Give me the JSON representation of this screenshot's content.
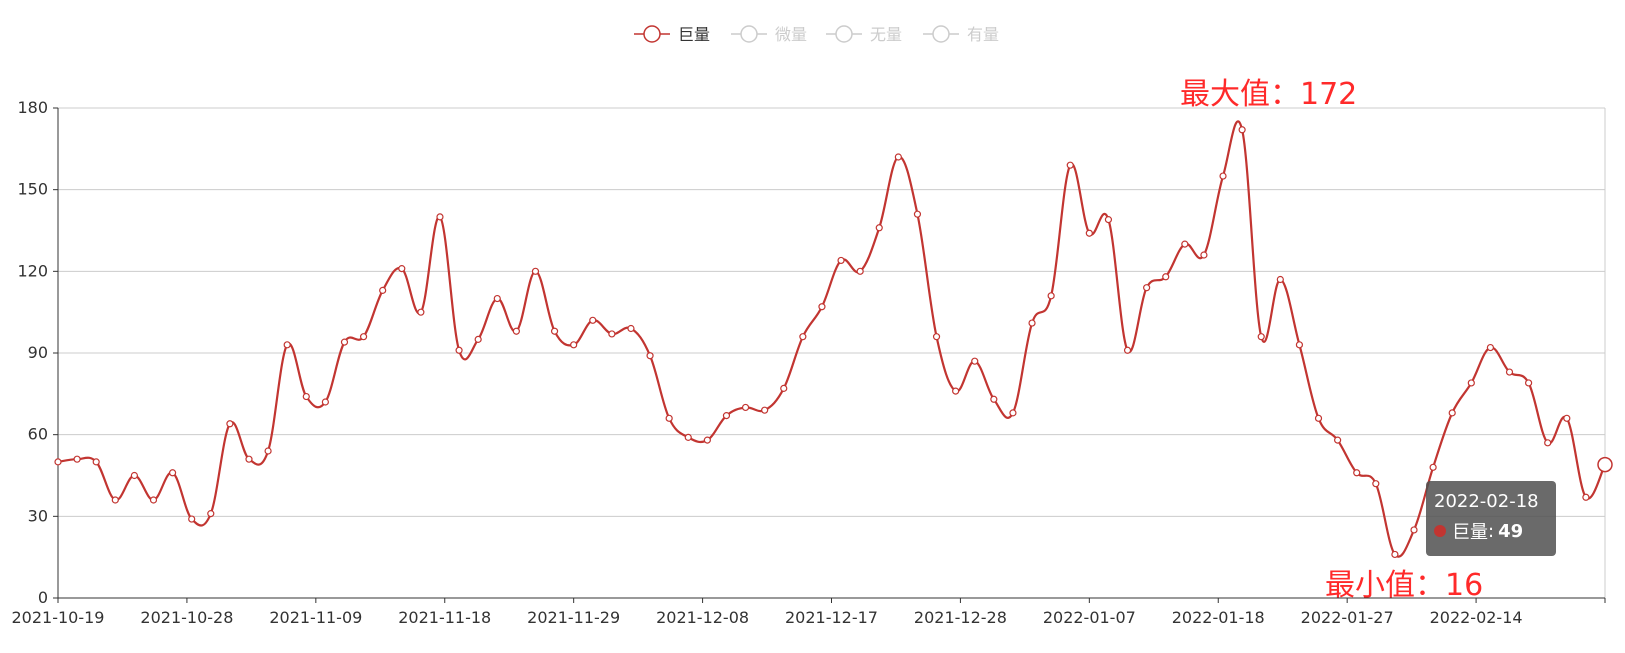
{
  "chart_data": {
    "type": "line",
    "smooth": true,
    "legend": {
      "placement": "top-center",
      "items": [
        {
          "label": "巨量",
          "active": true
        },
        {
          "label": "微量",
          "active": false
        },
        {
          "label": "无量",
          "active": false
        },
        {
          "label": "有量",
          "active": false
        }
      ]
    },
    "ylim": [
      0,
      180
    ],
    "yticks": [
      0,
      30,
      60,
      90,
      120,
      150,
      180
    ],
    "grid": true,
    "xtick_labels": [
      "2021-10-19",
      "2021-10-28",
      "2021-11-09",
      "2021-11-18",
      "2021-11-29",
      "2021-12-08",
      "2021-12-17",
      "2021-12-28",
      "2022-01-07",
      "2022-01-18",
      "2022-01-27",
      "2022-02-14"
    ],
    "series": [
      {
        "name": "巨量",
        "color": "#c23531",
        "values": [
          50,
          51,
          50,
          36,
          45,
          36,
          46,
          29,
          31,
          64,
          51,
          54,
          93,
          74,
          72,
          94,
          96,
          113,
          121,
          105,
          140,
          91,
          95,
          110,
          98,
          120,
          98,
          93,
          102,
          97,
          99,
          89,
          66,
          59,
          58,
          67,
          70,
          69,
          77,
          96,
          107,
          124,
          120,
          136,
          162,
          141,
          96,
          76,
          87,
          73,
          68,
          101,
          111,
          159,
          134,
          139,
          91,
          114,
          118,
          130,
          126,
          155,
          172,
          96,
          117,
          93,
          66,
          58,
          46,
          42,
          16,
          25,
          48,
          68,
          79,
          92,
          83,
          79,
          57,
          66,
          37,
          49
        ]
      }
    ],
    "annotations": {
      "max_label": "最大值：172",
      "min_label": "最小值：16"
    },
    "tooltip": {
      "date": "2022-02-18",
      "series": "巨量",
      "value_text": "49"
    }
  }
}
